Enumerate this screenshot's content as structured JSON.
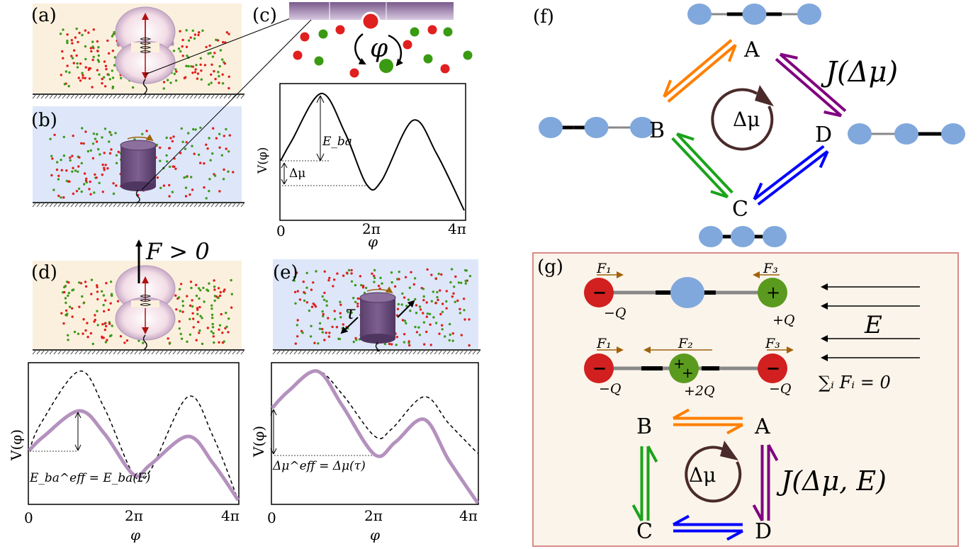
{
  "panels": {
    "a": "(a)",
    "b": "(b)",
    "c": "(c)",
    "d": "(d)",
    "e": "(e)",
    "f": "(f)",
    "g": "(g)"
  },
  "panel_c": {
    "angle_symbol": "φ",
    "ylabel": "V(φ)",
    "xlabel": "φ",
    "barrier_label": "E_ba",
    "delta_label": "Δμ",
    "ticks": [
      "0",
      "2π",
      "4π"
    ]
  },
  "panel_d": {
    "force_label": "F > 0",
    "ylabel": "V(φ)",
    "xlabel": "φ",
    "annotation": "E_ba^eff = E_ba(F)",
    "ticks": [
      "0",
      "2π",
      "4π"
    ]
  },
  "panel_e": {
    "torque_symbol": "τ",
    "ylabel": "V(φ)",
    "xlabel": "φ",
    "annotation": "Δμ^eff = Δμ(τ)",
    "ticks": [
      "0",
      "2π",
      "4π"
    ]
  },
  "panel_f": {
    "nodes": {
      "A": "A",
      "B": "B",
      "C": "C",
      "D": "D"
    },
    "cycle_label": "Δμ",
    "flux_label": "J(Δμ)"
  },
  "panel_g": {
    "forces": {
      "F1": "F₁",
      "F2": "F₂",
      "F3": "F₃"
    },
    "charges": {
      "minusQ": "−Q",
      "plusQ": "+Q",
      "plus2Q": "+2Q"
    },
    "field_label": "E",
    "sum_label": "∑ᵢ Fᵢ = 0",
    "nodes": {
      "A": "A",
      "B": "B",
      "C": "C",
      "D": "D"
    },
    "cycle_label": "Δμ",
    "flux_label": "J(Δμ, E)",
    "plus_sign": "+",
    "minus_sign": "−"
  },
  "colors": {
    "bg_peach": "#fbf0dd",
    "bg_blue": "#dde7f9",
    "motor_purple": "#6a4d7c",
    "curve_purple": "#b491be",
    "orange": "#ff7f00",
    "purple": "#800080",
    "green": "#1aa31a",
    "blue": "#0000ff",
    "bead_blue": "#80a8dc",
    "red": "#e01f1f",
    "green_ball": "#4a9a1a",
    "box_border": "#d98a8a",
    "box_fill": "#fbf4ea"
  }
}
